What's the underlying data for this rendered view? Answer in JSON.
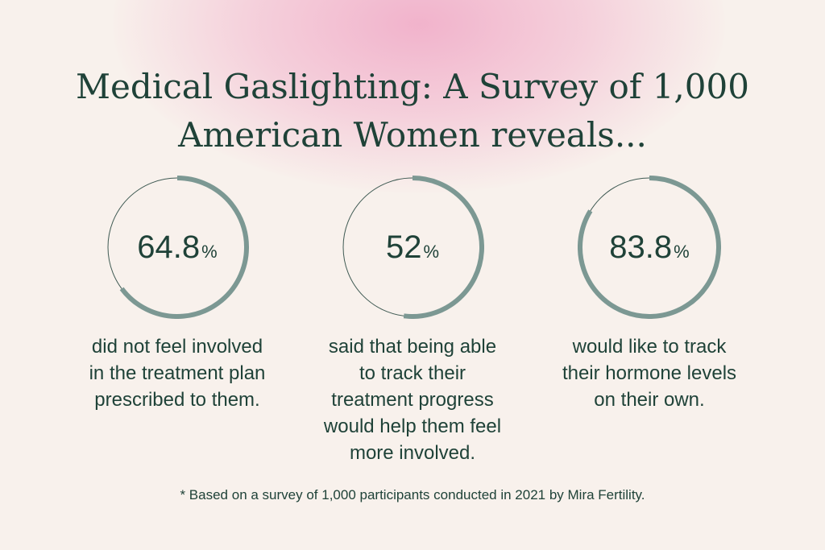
{
  "title_lines": [
    "Medical Gaslighting: A Survey of 1,000",
    "American Women reveals..."
  ],
  "chart_data": {
    "type": "donut",
    "items": [
      {
        "value": 64.8,
        "value_label": "64.8",
        "unit": "%",
        "caption_lines": [
          "did not feel involved",
          "in the treatment plan",
          "prescribed to them."
        ]
      },
      {
        "value": 52,
        "value_label": "52",
        "unit": "%",
        "caption_lines": [
          "said that being able",
          "to track their",
          "treatment progress",
          "would help them feel",
          "more involved."
        ]
      },
      {
        "value": 83.8,
        "value_label": "83.8",
        "unit": "%",
        "caption_lines": [
          "would like to track",
          "their hormone levels",
          "on their own."
        ]
      }
    ]
  },
  "footnote": "* Based on a survey of 1,000 participants conducted in 2021 by Mira Fertility.",
  "colors": {
    "ring": "#7c9893",
    "track": "#3f5a53",
    "text": "#1f4238",
    "background": "#f8f1ec",
    "glow": "#f0a8c6"
  }
}
